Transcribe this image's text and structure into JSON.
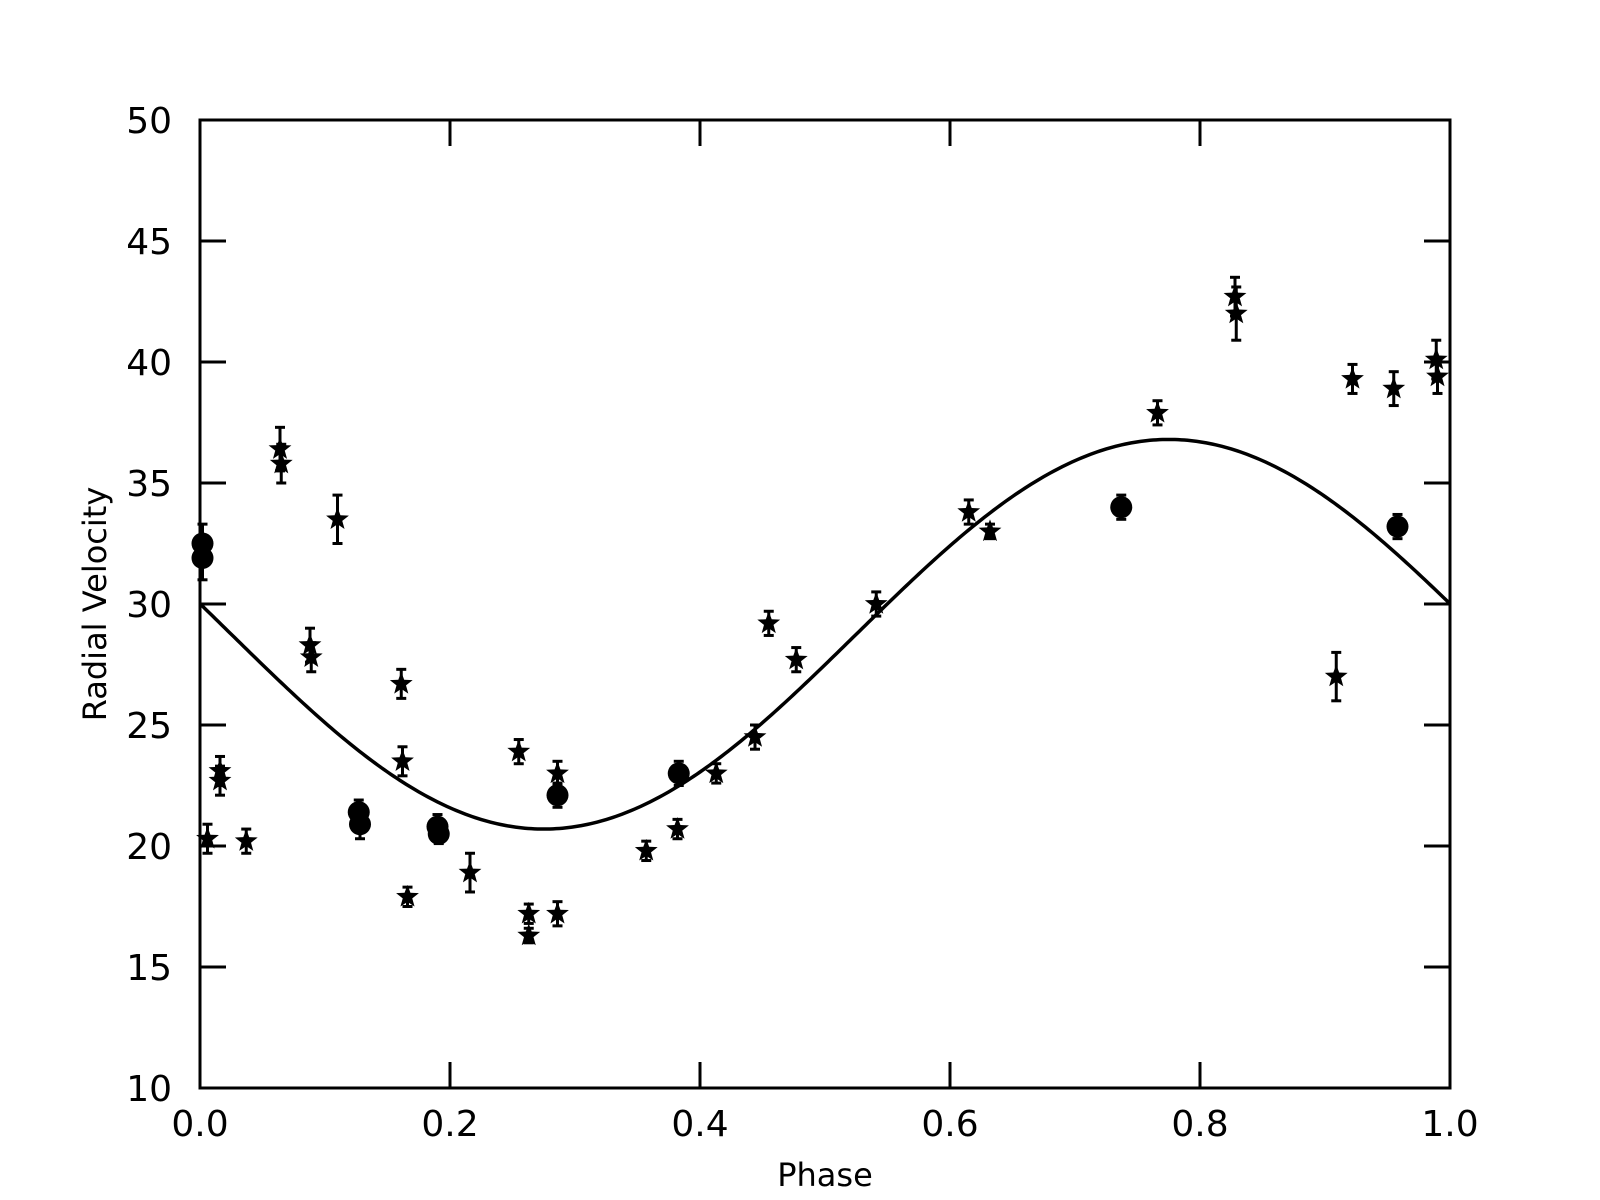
{
  "chart_data": {
    "type": "scatter",
    "xlabel": "Phase",
    "ylabel": "Radial Velocity",
    "xlim": [
      0.0,
      1.0
    ],
    "ylim": [
      10,
      50
    ],
    "x_ticks": [
      "0.0",
      "0.2",
      "0.4",
      "0.6",
      "0.8",
      "1.0"
    ],
    "y_ticks": [
      "10",
      "15",
      "20",
      "25",
      "30",
      "35",
      "40",
      "45",
      "50"
    ],
    "grid": false,
    "legend": "none",
    "colors": {
      "marks": "#000000",
      "background": "#ffffff"
    },
    "model_curve": {
      "form": "sinusoid",
      "offset": 28.75,
      "amplitude": 8.05,
      "min_phase": 0.275
    },
    "series": [
      {
        "marker": "circle",
        "points": [
          {
            "x": 0.002,
            "y": 32.5,
            "err": 0.8
          },
          {
            "x": 0.002,
            "y": 31.9,
            "err": 0.9
          },
          {
            "x": 0.127,
            "y": 21.4,
            "err": 0.5
          },
          {
            "x": 0.128,
            "y": 20.9,
            "err": 0.6
          },
          {
            "x": 0.19,
            "y": 20.8,
            "err": 0.5
          },
          {
            "x": 0.191,
            "y": 20.5,
            "err": 0.4
          },
          {
            "x": 0.286,
            "y": 22.1,
            "err": 0.5
          },
          {
            "x": 0.383,
            "y": 23.0,
            "err": 0.5
          },
          {
            "x": 0.737,
            "y": 34.0,
            "err": 0.5
          },
          {
            "x": 0.958,
            "y": 33.2,
            "err": 0.5
          }
        ]
      },
      {
        "marker": "star",
        "points": [
          {
            "x": 0.006,
            "y": 20.3,
            "err": 0.6
          },
          {
            "x": 0.016,
            "y": 23.1,
            "err": 0.6
          },
          {
            "x": 0.016,
            "y": 22.7,
            "err": 0.6
          },
          {
            "x": 0.037,
            "y": 20.2,
            "err": 0.5
          },
          {
            "x": 0.064,
            "y": 36.4,
            "err": 0.9
          },
          {
            "x": 0.065,
            "y": 35.8,
            "err": 0.8
          },
          {
            "x": 0.088,
            "y": 28.3,
            "err": 0.7
          },
          {
            "x": 0.089,
            "y": 27.8,
            "err": 0.6
          },
          {
            "x": 0.11,
            "y": 33.5,
            "err": 1.0
          },
          {
            "x": 0.161,
            "y": 26.7,
            "err": 0.6
          },
          {
            "x": 0.162,
            "y": 23.5,
            "err": 0.6
          },
          {
            "x": 0.166,
            "y": 17.9,
            "err": 0.4
          },
          {
            "x": 0.216,
            "y": 18.9,
            "err": 0.8
          },
          {
            "x": 0.255,
            "y": 23.9,
            "err": 0.5
          },
          {
            "x": 0.263,
            "y": 17.2,
            "err": 0.4
          },
          {
            "x": 0.263,
            "y": 16.3,
            "err": 0.3
          },
          {
            "x": 0.286,
            "y": 23.0,
            "err": 0.5
          },
          {
            "x": 0.286,
            "y": 17.2,
            "err": 0.5
          },
          {
            "x": 0.357,
            "y": 19.8,
            "err": 0.4
          },
          {
            "x": 0.382,
            "y": 20.7,
            "err": 0.4
          },
          {
            "x": 0.413,
            "y": 23.0,
            "err": 0.4
          },
          {
            "x": 0.444,
            "y": 24.5,
            "err": 0.5
          },
          {
            "x": 0.455,
            "y": 29.2,
            "err": 0.5
          },
          {
            "x": 0.477,
            "y": 27.7,
            "err": 0.5
          },
          {
            "x": 0.541,
            "y": 30.0,
            "err": 0.5
          },
          {
            "x": 0.615,
            "y": 33.8,
            "err": 0.5
          },
          {
            "x": 0.632,
            "y": 33.0,
            "err": 0.3
          },
          {
            "x": 0.766,
            "y": 37.9,
            "err": 0.5
          },
          {
            "x": 0.828,
            "y": 42.7,
            "err": 0.8
          },
          {
            "x": 0.829,
            "y": 42.0,
            "err": 1.1
          },
          {
            "x": 0.909,
            "y": 27.0,
            "err": 1.0
          },
          {
            "x": 0.922,
            "y": 39.3,
            "err": 0.6
          },
          {
            "x": 0.955,
            "y": 38.9,
            "err": 0.7
          },
          {
            "x": 0.989,
            "y": 40.1,
            "err": 0.8
          },
          {
            "x": 0.99,
            "y": 39.4,
            "err": 0.7
          }
        ]
      }
    ]
  }
}
